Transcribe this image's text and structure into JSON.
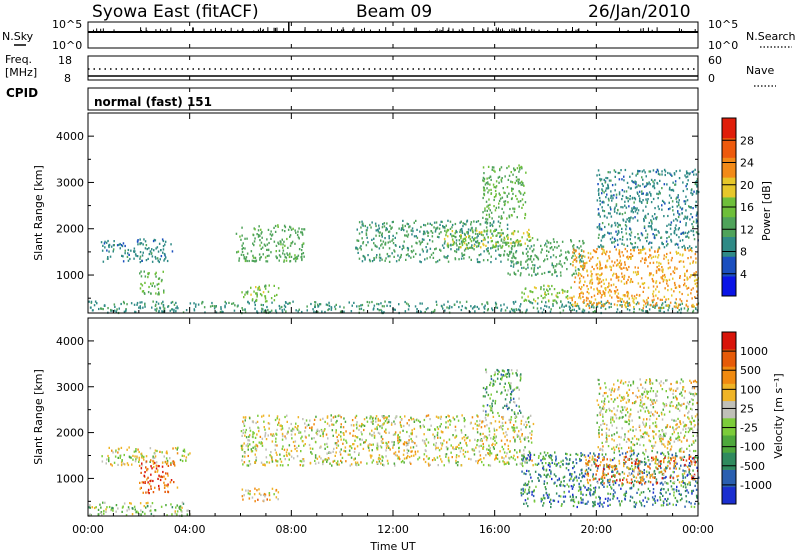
{
  "header": {
    "station": "Syowa East (fitACF)",
    "beam": "Beam 09",
    "date": "26/Jan/2010"
  },
  "status_panels": {
    "nsky_label": "N.Sky",
    "nsearch_label": "N.Search",
    "noise_left_ticks": [
      "10^5",
      "10^0"
    ],
    "noise_right_ticks": [
      "10^5",
      "10^0"
    ],
    "freq_label_line1": "Freq.",
    "freq_label_line2": "[MHz]",
    "freq_left_ticks": [
      "18",
      "8"
    ],
    "nave_label": "Nave",
    "nave_right_ticks": [
      "60",
      "0"
    ],
    "cpid_label": "CPID",
    "cpid_text": "normal (fast) 151"
  },
  "colors": {
    "power_scale": [
      "#0a14e6",
      "#1b4fbf",
      "#2f8a86",
      "#4fa35a",
      "#6ebf3a",
      "#e6c72a",
      "#f28a18",
      "#ee5a0d",
      "#e01e0a"
    ],
    "velocity_scale": [
      "#1b2fd0",
      "#2a5fb0",
      "#2f8a5e",
      "#4ea83c",
      "#7ccc3a",
      "#c0c0b8",
      "#efb426",
      "#f08a10",
      "#e65a08",
      "#d8140a"
    ]
  },
  "chart_data": [
    {
      "type": "heatmap",
      "name": "power",
      "ylabel": "Slant Range [km]",
      "ylim": [
        180,
        4500
      ],
      "yticks": [
        "1000",
        "2000",
        "3000",
        "4000"
      ],
      "xlim": [
        "00:00",
        "24:00"
      ],
      "colorbar_label": "Power [dB]",
      "colorbar_ticks": [
        "4",
        "8",
        "12",
        "16",
        "20",
        "24",
        "28"
      ],
      "colorbar_range": [
        0,
        32
      ],
      "scatter_regions": [
        {
          "t_start": 0.0,
          "t_end": 24.0,
          "r_min": 200,
          "r_max": 450,
          "level": 10
        },
        {
          "t_start": 0.5,
          "t_end": 3.3,
          "r_min": 1300,
          "r_max": 1800,
          "level": 9
        },
        {
          "t_start": 2.0,
          "t_end": 3.0,
          "r_min": 600,
          "r_max": 1100,
          "level": 14
        },
        {
          "t_start": 5.8,
          "t_end": 8.5,
          "r_min": 1300,
          "r_max": 2100,
          "level": 13
        },
        {
          "t_start": 6.0,
          "t_end": 7.5,
          "r_min": 450,
          "r_max": 800,
          "level": 16
        },
        {
          "t_start": 10.5,
          "t_end": 16.5,
          "r_min": 1300,
          "r_max": 2200,
          "level": 11
        },
        {
          "t_start": 14.0,
          "t_end": 17.5,
          "r_min": 1600,
          "r_max": 2000,
          "level": 17
        },
        {
          "t_start": 15.5,
          "t_end": 17.2,
          "r_min": 2200,
          "r_max": 3400,
          "level": 14
        },
        {
          "t_start": 16.5,
          "t_end": 19.5,
          "r_min": 1000,
          "r_max": 1800,
          "level": 12
        },
        {
          "t_start": 17.0,
          "t_end": 19.0,
          "r_min": 450,
          "r_max": 800,
          "level": 16
        },
        {
          "t_start": 19.0,
          "t_end": 24.0,
          "r_min": 300,
          "r_max": 1600,
          "level": 22
        },
        {
          "t_start": 20.0,
          "t_end": 24.0,
          "r_min": 1600,
          "r_max": 3300,
          "level": 9
        }
      ]
    },
    {
      "type": "heatmap",
      "name": "velocity",
      "ylabel": "Slant Range [km]",
      "xlabel": "Time UT",
      "ylim": [
        180,
        4500
      ],
      "yticks": [
        "1000",
        "2000",
        "3000",
        "4000"
      ],
      "xlim": [
        "00:00",
        "24:00"
      ],
      "xticks": [
        "00:00",
        "04:00",
        "08:00",
        "12:00",
        "16:00",
        "20:00",
        "00:00"
      ],
      "colorbar_label": "Velocity [m s⁻¹]",
      "colorbar_ticks": [
        "1000",
        "500",
        "100",
        "25",
        "-25",
        "-100",
        "-500",
        "-1000"
      ],
      "scatter_regions": [
        {
          "t_start": 0.0,
          "t_end": 4.0,
          "r_min": 200,
          "r_max": 500,
          "level": 4
        },
        {
          "t_start": 0.5,
          "t_end": 4.0,
          "r_min": 1300,
          "r_max": 1700,
          "level": 5
        },
        {
          "t_start": 2.0,
          "t_end": 3.5,
          "r_min": 700,
          "r_max": 1400,
          "level": 8
        },
        {
          "t_start": 6.0,
          "t_end": 7.5,
          "r_min": 500,
          "r_max": 800,
          "level": 6
        },
        {
          "t_start": 6.0,
          "t_end": 17.5,
          "r_min": 1300,
          "r_max": 2400,
          "level": 5
        },
        {
          "t_start": 15.5,
          "t_end": 17.0,
          "r_min": 2400,
          "r_max": 3400,
          "level": 3
        },
        {
          "t_start": 17.0,
          "t_end": 24.0,
          "r_min": 400,
          "r_max": 1600,
          "level": 2
        },
        {
          "t_start": 19.5,
          "t_end": 24.0,
          "r_min": 900,
          "r_max": 1500,
          "level": 7
        },
        {
          "t_start": 20.0,
          "t_end": 24.0,
          "r_min": 1600,
          "r_max": 3200,
          "level": 5
        }
      ]
    }
  ]
}
